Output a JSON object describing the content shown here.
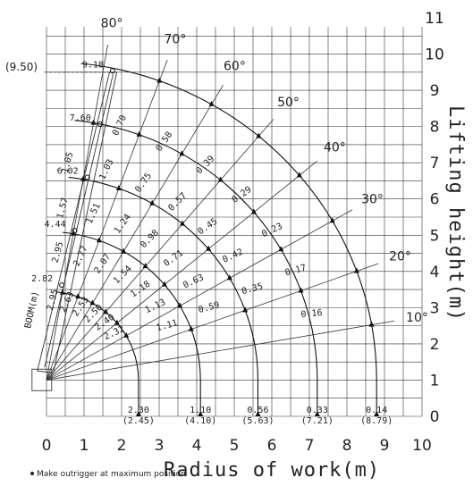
{
  "chart_data": {
    "type": "crane-load-chart",
    "xlabel": "Radius of work(m)",
    "ylabel": "Lifting height(m)",
    "xlim": [
      0,
      10
    ],
    "ylim": [
      0,
      11
    ],
    "x_ticks": [
      "0",
      "1",
      "2",
      "3",
      "4",
      "5",
      "6",
      "7",
      "8",
      "9",
      "10"
    ],
    "y_ticks": [
      "0",
      "1",
      "2",
      "3",
      "4",
      "5",
      "6",
      "7",
      "8",
      "9",
      "10",
      "11"
    ],
    "angles": [
      {
        "label": "80°",
        "deg": 80
      },
      {
        "label": "70°",
        "deg": 70
      },
      {
        "label": "60°",
        "deg": 60
      },
      {
        "label": "50°",
        "deg": 50
      },
      {
        "label": "40°",
        "deg": 40
      },
      {
        "label": "30°",
        "deg": 30
      },
      {
        "label": "20°",
        "deg": 20
      },
      {
        "label": "10°",
        "deg": 10
      }
    ],
    "booms": [
      {
        "length_label": "2.82",
        "length": 2.82,
        "max_radius_label": "2.30",
        "max_radius_paren": "(2.45)",
        "max_radius": 2.45,
        "loads": [
          {
            "angle": 80,
            "value": "2.95"
          },
          {
            "angle": 70,
            "value": "2.63"
          },
          {
            "angle": 60,
            "value": "2.53"
          },
          {
            "angle": 50,
            "value": "2.50"
          },
          {
            "angle": 40,
            "value": "2.40"
          },
          {
            "angle": 30,
            "value": "2.32"
          }
        ]
      },
      {
        "length_label": "4.44",
        "length": 4.44,
        "max_radius_label": "1.10",
        "max_radius_paren": "(4.10)",
        "max_radius": 4.1,
        "loads": [
          {
            "angle": 80,
            "value": "2.95"
          },
          {
            "angle": 70,
            "value": "2.77"
          },
          {
            "angle": 60,
            "value": "2.07"
          },
          {
            "angle": 50,
            "value": "1.54"
          },
          {
            "angle": 40,
            "value": "1.18"
          },
          {
            "angle": 30,
            "value": "1.13"
          },
          {
            "angle": 20,
            "value": "1.11"
          }
        ]
      },
      {
        "length_label": "6.02",
        "length": 6.02,
        "max_radius_label": "0.56",
        "max_radius_paren": "(5.63)",
        "max_radius": 5.63,
        "loads": [
          {
            "angle": 80,
            "value": "1.57"
          },
          {
            "angle": 70,
            "value": "1.51"
          },
          {
            "angle": 60,
            "value": "1.24"
          },
          {
            "angle": 50,
            "value": "0.98"
          },
          {
            "angle": 40,
            "value": "0.71"
          },
          {
            "angle": 30,
            "value": "0.63"
          },
          {
            "angle": 20,
            "value": "0.59"
          }
        ]
      },
      {
        "length_label": "7.60",
        "length": 7.6,
        "max_radius_label": "0.33",
        "max_radius_paren": "(7.21)",
        "max_radius": 7.21,
        "loads": [
          {
            "angle": 80,
            "value": "1.05"
          },
          {
            "angle": 70,
            "value": "1.03"
          },
          {
            "angle": 60,
            "value": "0.75"
          },
          {
            "angle": 50,
            "value": "0.57"
          },
          {
            "angle": 40,
            "value": "0.45"
          },
          {
            "angle": 30,
            "value": "0.42"
          },
          {
            "angle": 20,
            "value": "0.35"
          }
        ]
      },
      {
        "length_label": "9.18",
        "length": 9.18,
        "max_radius_label": "0.14",
        "max_radius_paren": "(8.79)",
        "max_radius": 8.79,
        "loads": [
          {
            "angle": 70,
            "value": "0.70"
          },
          {
            "angle": 60,
            "value": "0.58"
          },
          {
            "angle": 50,
            "value": "0.39"
          },
          {
            "angle": 40,
            "value": "0.29"
          },
          {
            "angle": 30,
            "value": "0.23"
          },
          {
            "angle": 20,
            "value": "0.17"
          },
          {
            "angle": 10,
            "value": "0.16"
          }
        ]
      }
    ],
    "max_height_label": "(9.50)",
    "max_height": 9.5,
    "boom_axis_label": "BOOM(m)",
    "note": "Make outrigger at maximum position"
  }
}
